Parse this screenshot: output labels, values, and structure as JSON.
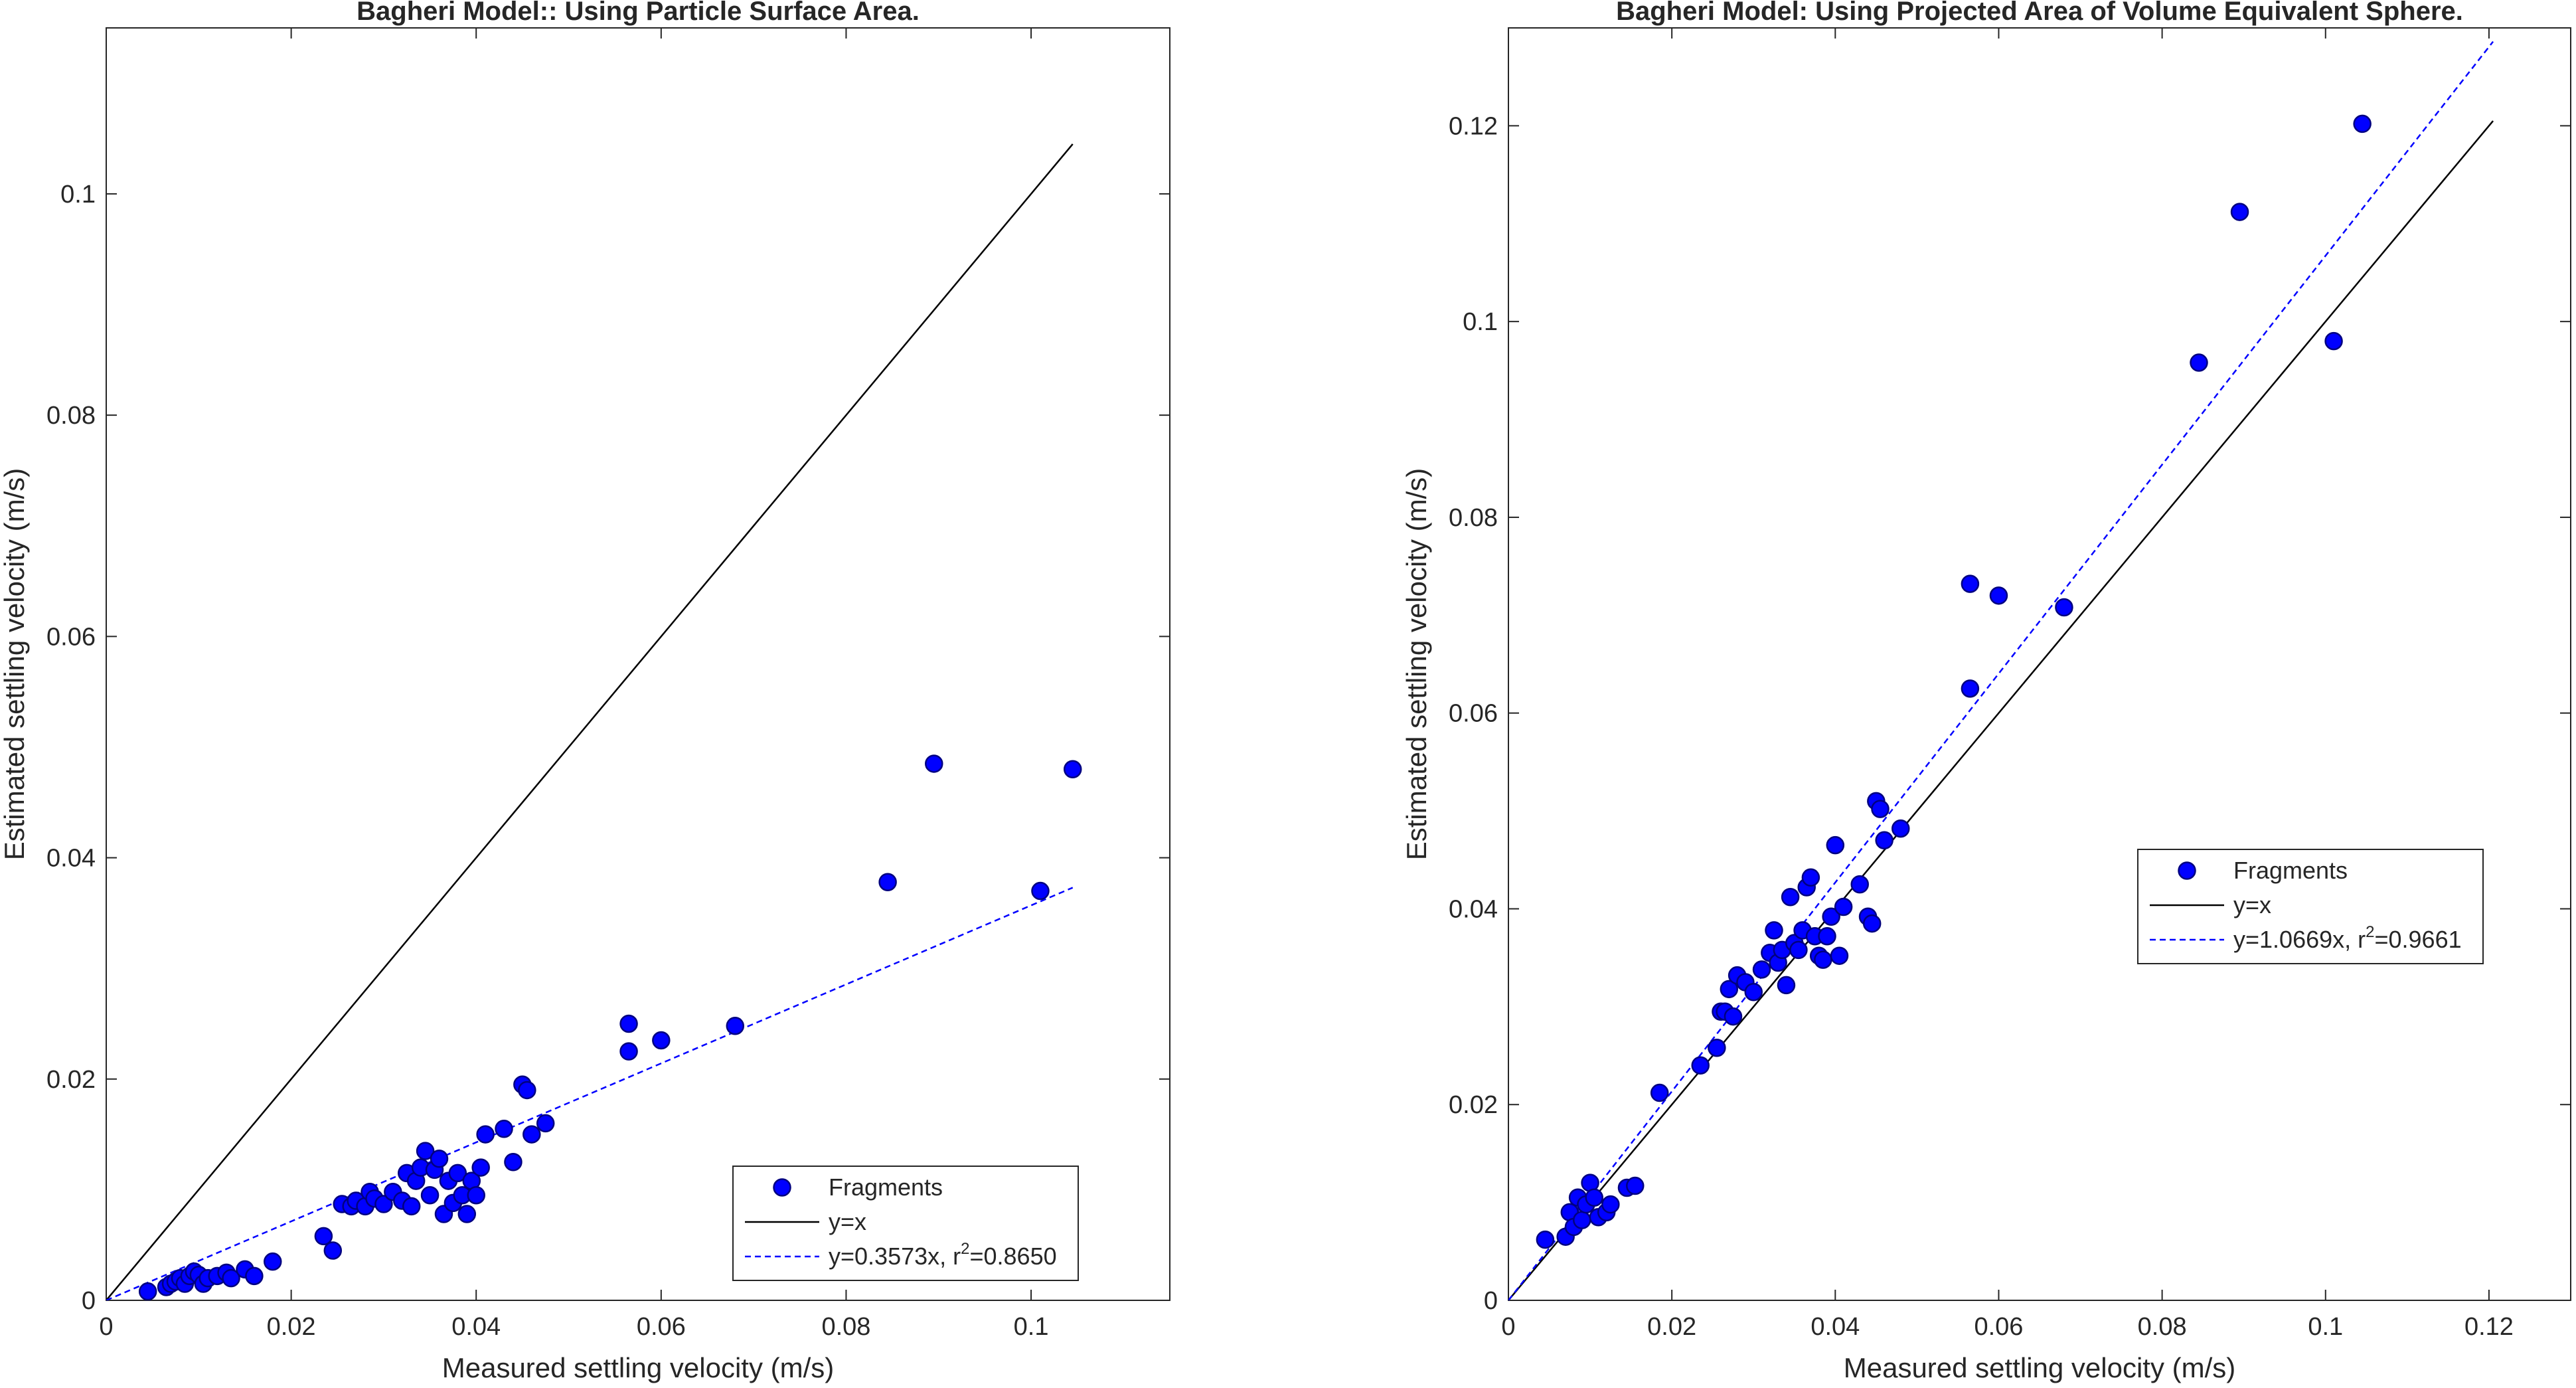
{
  "chart_data": [
    {
      "type": "scatter",
      "title": "Bagheri Model:: Using Particle Surface Area.",
      "xlabel": "Measured settling velocity (m/s)",
      "ylabel": "Estimated settling velocity (m/s)",
      "xlim": [
        0,
        0.115
      ],
      "ylim": [
        0,
        0.115
      ],
      "xticks": [
        0,
        0.02,
        0.04,
        0.06,
        0.08,
        0.1
      ],
      "xtick_labels": [
        "0",
        "0.02",
        "0.04",
        "0.06",
        "0.08",
        "0.1"
      ],
      "yticks": [
        0,
        0.02,
        0.04,
        0.06,
        0.08,
        0.1
      ],
      "ytick_labels": [
        "0",
        "0.02",
        "0.04",
        "0.06",
        "0.08",
        "0.1"
      ],
      "grid": false,
      "legend_position": "bottom-right",
      "series": [
        {
          "name": "Fragments",
          "kind": "points",
          "color": "#0000ff",
          "x": [
            0.0045,
            0.0065,
            0.007,
            0.0075,
            0.008,
            0.0085,
            0.009,
            0.0095,
            0.01,
            0.0105,
            0.011,
            0.012,
            0.013,
            0.0135,
            0.015,
            0.016,
            0.018,
            0.0235,
            0.0245,
            0.0255,
            0.0265,
            0.027,
            0.028,
            0.0285,
            0.029,
            0.03,
            0.031,
            0.032,
            0.0325,
            0.033,
            0.0335,
            0.034,
            0.0345,
            0.035,
            0.0355,
            0.036,
            0.0365,
            0.037,
            0.0375,
            0.038,
            0.0385,
            0.039,
            0.0395,
            0.04,
            0.0405,
            0.041,
            0.043,
            0.044,
            0.045,
            0.0455,
            0.046,
            0.0475,
            0.0565,
            0.0565,
            0.06,
            0.068,
            0.0845,
            0.0895,
            0.101,
            0.1045
          ],
          "y": [
            0.0008,
            0.0012,
            0.0015,
            0.0017,
            0.002,
            0.0015,
            0.0022,
            0.0026,
            0.0023,
            0.0015,
            0.002,
            0.0022,
            0.0025,
            0.002,
            0.0028,
            0.0022,
            0.0035,
            0.0058,
            0.0045,
            0.0087,
            0.0085,
            0.009,
            0.0085,
            0.0098,
            0.0092,
            0.0087,
            0.0098,
            0.009,
            0.0115,
            0.0085,
            0.0108,
            0.012,
            0.0135,
            0.0095,
            0.0118,
            0.0128,
            0.0078,
            0.0108,
            0.0088,
            0.0115,
            0.0095,
            0.0078,
            0.0108,
            0.0095,
            0.012,
            0.015,
            0.0155,
            0.0125,
            0.0195,
            0.019,
            0.015,
            0.016,
            0.0225,
            0.025,
            0.0235,
            0.0248,
            0.0378,
            0.0485,
            0.037,
            0.048
          ]
        },
        {
          "name": "y=x",
          "kind": "line",
          "color": "#000000",
          "dash": "solid",
          "x": [
            0,
            0.1045
          ],
          "y": [
            0,
            0.1045
          ]
        },
        {
          "name": "y=0.3573x, r2=0.8650",
          "kind": "line",
          "color": "#0000ff",
          "dash": "dashed",
          "x": [
            0,
            0.1045
          ],
          "y": [
            0,
            0.0373
          ]
        }
      ],
      "legend": [
        {
          "type": "marker",
          "text": "Fragments"
        },
        {
          "type": "solid",
          "text": "y=x"
        },
        {
          "type": "dashed",
          "text": "y=0.3573x, r",
          "sup": "2",
          "tail": "=0.8650"
        }
      ]
    },
    {
      "type": "scatter",
      "title": "Bagheri Model: Using Projected Area of Volume Equivalent Sphere.",
      "xlabel": "Measured settling velocity (m/s)",
      "ylabel": "Estimated settling velocity (m/s)",
      "xlim": [
        0,
        0.13
      ],
      "ylim": [
        0,
        0.13
      ],
      "xticks": [
        0,
        0.02,
        0.04,
        0.06,
        0.08,
        0.1,
        0.12
      ],
      "xtick_labels": [
        "0",
        "0.02",
        "0.04",
        "0.06",
        "0.08",
        "0.1",
        "0.12"
      ],
      "yticks": [
        0,
        0.02,
        0.04,
        0.06,
        0.08,
        0.1,
        0.12
      ],
      "ytick_labels": [
        "0",
        "0.02",
        "0.04",
        "0.06",
        "0.08",
        "0.1",
        "0.12"
      ],
      "grid": false,
      "legend_position": "right",
      "series": [
        {
          "name": "Fragments",
          "kind": "points",
          "color": "#0000ff",
          "x": [
            0.0045,
            0.007,
            0.0075,
            0.008,
            0.0085,
            0.009,
            0.0095,
            0.01,
            0.0105,
            0.011,
            0.012,
            0.0125,
            0.0145,
            0.0155,
            0.0185,
            0.0235,
            0.0255,
            0.026,
            0.0265,
            0.027,
            0.0275,
            0.028,
            0.029,
            0.03,
            0.031,
            0.032,
            0.0325,
            0.033,
            0.0335,
            0.034,
            0.0345,
            0.035,
            0.0355,
            0.036,
            0.0365,
            0.037,
            0.0375,
            0.038,
            0.0385,
            0.039,
            0.0395,
            0.04,
            0.0405,
            0.041,
            0.043,
            0.044,
            0.0445,
            0.045,
            0.0455,
            0.046,
            0.048,
            0.0565,
            0.0565,
            0.06,
            0.068,
            0.0845,
            0.0895,
            0.101,
            0.1045
          ],
          "y": [
            0.0062,
            0.0065,
            0.009,
            0.0075,
            0.0105,
            0.0082,
            0.0098,
            0.012,
            0.0105,
            0.0085,
            0.009,
            0.0098,
            0.0115,
            0.0117,
            0.0212,
            0.024,
            0.0258,
            0.0295,
            0.0295,
            0.0318,
            0.029,
            0.0332,
            0.0325,
            0.0315,
            0.0338,
            0.0355,
            0.0378,
            0.0345,
            0.0358,
            0.0322,
            0.0412,
            0.0365,
            0.0358,
            0.0378,
            0.0422,
            0.0432,
            0.0372,
            0.0352,
            0.0348,
            0.0372,
            0.0392,
            0.0465,
            0.0352,
            0.0402,
            0.0425,
            0.0392,
            0.0385,
            0.051,
            0.0502,
            0.047,
            0.0482,
            0.0732,
            0.0625,
            0.072,
            0.0708,
            0.0958,
            0.1112,
            0.098,
            0.1202
          ]
        },
        {
          "name": "y=x",
          "kind": "line",
          "color": "#000000",
          "dash": "solid",
          "x": [
            0,
            0.1205
          ],
          "y": [
            0,
            0.1205
          ]
        },
        {
          "name": "y=1.0669x, r2=0.9661",
          "kind": "line",
          "color": "#0000ff",
          "dash": "dashed",
          "x": [
            0,
            0.1205
          ],
          "y": [
            0,
            0.1286
          ]
        }
      ],
      "legend": [
        {
          "type": "marker",
          "text": "Fragments"
        },
        {
          "type": "solid",
          "text": "y=x"
        },
        {
          "type": "dashed",
          "text": "y=1.0669x, r",
          "sup": "2",
          "tail": "=0.9661"
        }
      ]
    }
  ]
}
